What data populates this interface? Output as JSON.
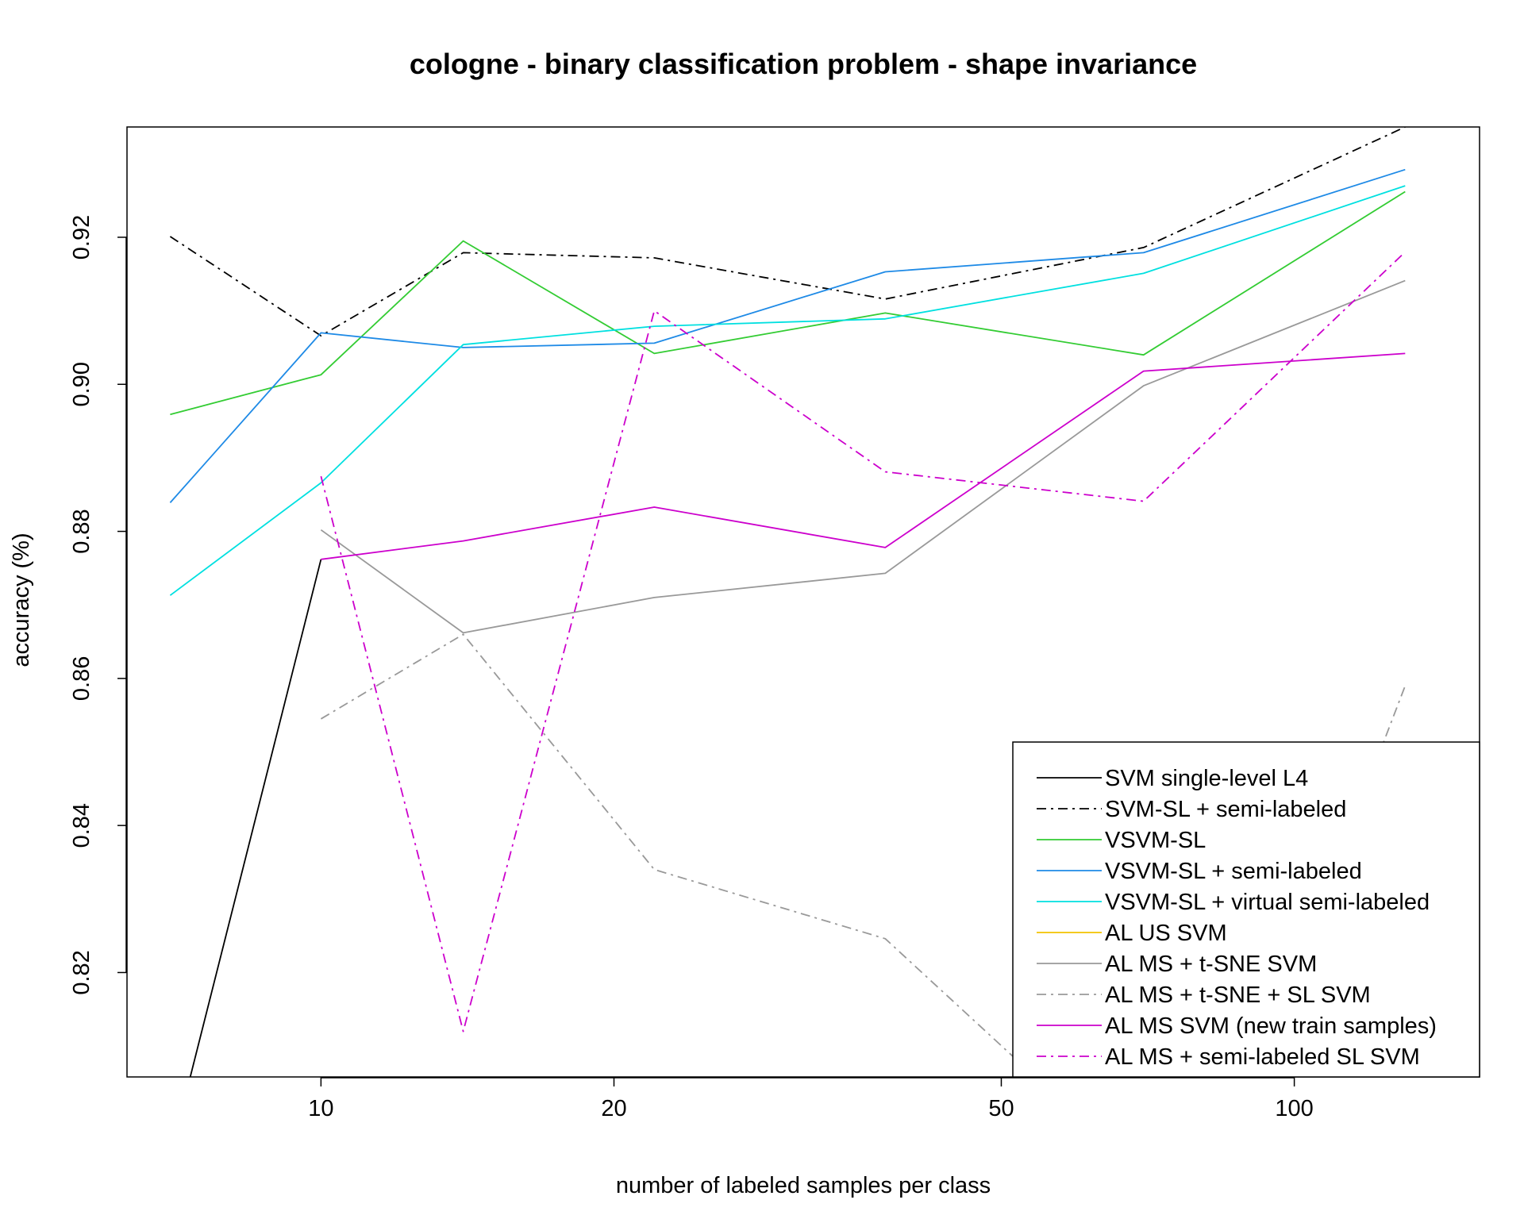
{
  "chart_data": {
    "type": "line",
    "title": "cologne - binary classification problem - shape invariance",
    "xlabel": "number of labeled samples per class",
    "ylabel": "accuracy (%)",
    "x_scale": "log",
    "xlim": [
      6.32,
      155
    ],
    "ylim": [
      0.8058,
      0.935
    ],
    "x_ticks": [
      10,
      20,
      50,
      100
    ],
    "y_ticks": [
      0.82,
      0.84,
      0.86,
      0.88,
      0.9,
      0.92
    ],
    "y_tick_labels": [
      "0.82",
      "0.84",
      "0.86",
      "0.88",
      "0.90",
      "0.92"
    ],
    "grid": false,
    "legend_position": "bottom-right",
    "series": [
      {
        "name": "SVM single-level L4",
        "color": "#000000",
        "dash": "solid",
        "x": [
          7,
          10
        ],
        "y": [
          0.795,
          0.8762
        ]
      },
      {
        "name": "SVM-SL + semi-labeled",
        "color": "#000000",
        "dash": "dotdash",
        "x": [
          7,
          10,
          14,
          22,
          38,
          70,
          130
        ],
        "y": [
          0.9201,
          0.9066,
          0.9179,
          0.9172,
          0.9116,
          0.9186,
          0.935
        ]
      },
      {
        "name": "VSVM-SL",
        "color": "#33cc33",
        "dash": "solid",
        "x": [
          7,
          10,
          14,
          22,
          38,
          70,
          130
        ],
        "y": [
          0.8959,
          0.9013,
          0.9195,
          0.9042,
          0.9097,
          0.904,
          0.9262
        ]
      },
      {
        "name": "VSVM-SL + semi-labeled",
        "color": "#1e8ae6",
        "dash": "solid",
        "x": [
          7,
          10,
          14,
          22,
          38,
          70,
          130
        ],
        "y": [
          0.8839,
          0.907,
          0.905,
          0.9056,
          0.9153,
          0.9179,
          0.9292
        ]
      },
      {
        "name": "VSVM-SL + virtual semi-labeled",
        "color": "#00e0e0",
        "dash": "solid",
        "x": [
          7,
          10,
          14,
          22,
          38,
          70,
          130
        ],
        "y": [
          0.8713,
          0.8866,
          0.9054,
          0.9079,
          0.9089,
          0.9151,
          0.927
        ]
      },
      {
        "name": "AL US SVM",
        "color": "#f2c200",
        "dash": "solid",
        "x": [],
        "y": []
      },
      {
        "name": "AL MS + t-SNE SVM",
        "color": "#999999",
        "dash": "solid",
        "x": [
          10,
          14,
          22,
          38,
          70,
          130
        ],
        "y": [
          0.8802,
          0.8662,
          0.871,
          0.8743,
          0.8998,
          0.9141
        ]
      },
      {
        "name": "AL MS + t-SNE + SL SVM",
        "color": "#999999",
        "dash": "dotdash",
        "x": [
          10,
          14,
          22,
          38,
          55,
          120,
          130
        ],
        "y": [
          0.8545,
          0.866,
          0.834,
          0.8246,
          0.805,
          0.847,
          0.859
        ]
      },
      {
        "name": "AL MS SVM (new train samples)",
        "color": "#cc00cc",
        "dash": "solid",
        "x": [
          10,
          14,
          22,
          38,
          70,
          130
        ],
        "y": [
          0.8762,
          0.8787,
          0.8833,
          0.8778,
          0.9018,
          0.9042
        ]
      },
      {
        "name": "AL MS + semi-labeled SL SVM",
        "color": "#cc00cc",
        "dash": "dotdash",
        "x": [
          10,
          14,
          22,
          38,
          70,
          130
        ],
        "y": [
          0.8875,
          0.812,
          0.91,
          0.8881,
          0.8841,
          0.918
        ]
      }
    ]
  }
}
